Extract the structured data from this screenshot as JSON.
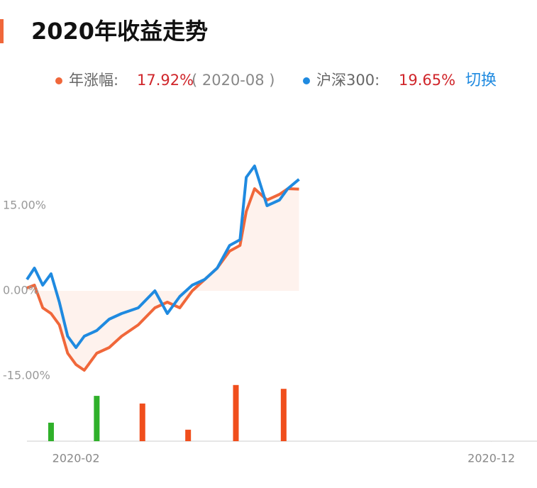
{
  "chart_data": {
    "type": "line",
    "title": "2020年收益走势",
    "legend": {
      "series_label": "年涨幅:",
      "series_value": "17.92%",
      "period": "( 2020-08 )",
      "benchmark_label": "沪深300:",
      "benchmark_value": "19.65%",
      "switch": "切换"
    },
    "x": [
      0.82,
      1.0,
      1.2,
      1.4,
      1.6,
      1.8,
      2.0,
      2.2,
      2.5,
      2.8,
      3.1,
      3.5,
      3.9,
      4.2,
      4.5,
      4.8,
      5.1,
      5.4,
      5.7,
      5.95,
      6.1,
      6.3,
      6.6,
      6.9,
      7.1,
      7.37
    ],
    "series": [
      {
        "name": "年涨幅",
        "color": "#f0673a",
        "values": [
          0.5,
          1,
          -3,
          -4,
          -6,
          -11,
          -13,
          -14,
          -11,
          -10,
          -8,
          -6,
          -3,
          -2,
          -3,
          0,
          2,
          4,
          7,
          8,
          14,
          18,
          16,
          17,
          18,
          17.92
        ]
      },
      {
        "name": "沪深300",
        "color": "#1f8ae0",
        "values": [
          2,
          4,
          1,
          3,
          -2,
          -8,
          -10,
          -8,
          -7,
          -5,
          -4,
          -3,
          0,
          -4,
          -1,
          1,
          2,
          4,
          8,
          9,
          20,
          22,
          15,
          16,
          18,
          19.65
        ]
      }
    ],
    "xlim": [
      0.82,
      13.1
    ],
    "xticks": [
      {
        "value": 2,
        "label": "2020-02"
      },
      {
        "value": 12,
        "label": "2020-12"
      }
    ],
    "ylim": [
      -15,
      25
    ],
    "yticks": [
      {
        "value": 15,
        "label": "15.00%"
      },
      {
        "value": 0,
        "label": "0.00%"
      },
      {
        "value": -15,
        "label": "-15.00%"
      }
    ],
    "bars": {
      "x": [
        1.4,
        2.5,
        3.6,
        4.7,
        5.85,
        7.0
      ],
      "values": [
        -2.9,
        -7.1,
        5.9,
        1.8,
        8.8,
        8.2
      ],
      "up_color": "#f04e1c",
      "down_color": "#2fb02a",
      "y2lim": [
        0,
        10
      ]
    }
  }
}
